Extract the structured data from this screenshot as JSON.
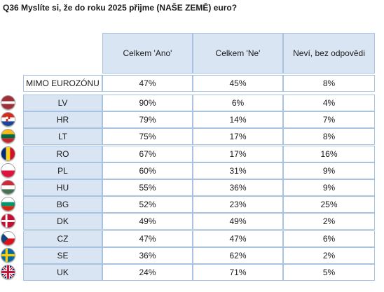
{
  "title": "Q36 Myslíte si, že do roku 2025 přijme (NAŠE ZEMĚ) euro?",
  "columns": [
    "Celkem 'Ano'",
    "Celkem 'Ne'",
    "Neví, bez odpovědi"
  ],
  "summary_row": {
    "label": "MIMO EUROZÓNU",
    "values": [
      "47%",
      "45%",
      "8%"
    ]
  },
  "rows": [
    {
      "label": "LV",
      "flag": "latvia-flag-icon",
      "values": [
        "90%",
        "6%",
        "4%"
      ]
    },
    {
      "label": "HR",
      "flag": "croatia-flag-icon",
      "values": [
        "79%",
        "14%",
        "7%"
      ]
    },
    {
      "label": "LT",
      "flag": "lithuania-flag-icon",
      "values": [
        "75%",
        "17%",
        "8%"
      ]
    },
    {
      "label": "RO",
      "flag": "romania-flag-icon",
      "values": [
        "67%",
        "17%",
        "16%"
      ]
    },
    {
      "label": "PL",
      "flag": "poland-flag-icon",
      "values": [
        "60%",
        "31%",
        "9%"
      ]
    },
    {
      "label": "HU",
      "flag": "hungary-flag-icon",
      "values": [
        "55%",
        "36%",
        "9%"
      ]
    },
    {
      "label": "BG",
      "flag": "bulgaria-flag-icon",
      "values": [
        "52%",
        "23%",
        "25%"
      ]
    },
    {
      "label": "DK",
      "flag": "denmark-flag-icon",
      "values": [
        "49%",
        "49%",
        "2%"
      ]
    },
    {
      "label": "CZ",
      "flag": "czechia-flag-icon",
      "values": [
        "47%",
        "47%",
        "6%"
      ]
    },
    {
      "label": "SE",
      "flag": "sweden-flag-icon",
      "values": [
        "36%",
        "62%",
        "2%"
      ]
    },
    {
      "label": "UK",
      "flag": "uk-flag-icon",
      "values": [
        "24%",
        "71%",
        "5%"
      ]
    }
  ],
  "chart_data": {
    "type": "table",
    "title": "Q36 Myslíte si, že do roku 2025 přijme (NAŠE ZEMĚ) euro?",
    "columns": [
      "Celkem 'Ano'",
      "Celkem 'Ne'",
      "Neví, bez odpovědi"
    ],
    "rows": [
      "MIMO EUROZÓNU",
      "LV",
      "HR",
      "LT",
      "RO",
      "PL",
      "HU",
      "BG",
      "DK",
      "CZ",
      "SE",
      "UK"
    ],
    "values": [
      [
        47,
        45,
        8
      ],
      [
        90,
        6,
        4
      ],
      [
        79,
        14,
        7
      ],
      [
        75,
        17,
        8
      ],
      [
        67,
        17,
        16
      ],
      [
        60,
        31,
        9
      ],
      [
        55,
        36,
        9
      ],
      [
        52,
        23,
        25
      ],
      [
        49,
        49,
        2
      ],
      [
        47,
        47,
        6
      ],
      [
        36,
        62,
        2
      ],
      [
        24,
        71,
        5
      ]
    ],
    "unit": "%"
  },
  "colors": {
    "header_bg": "#dae5f3",
    "border": "#a8c2e1"
  }
}
